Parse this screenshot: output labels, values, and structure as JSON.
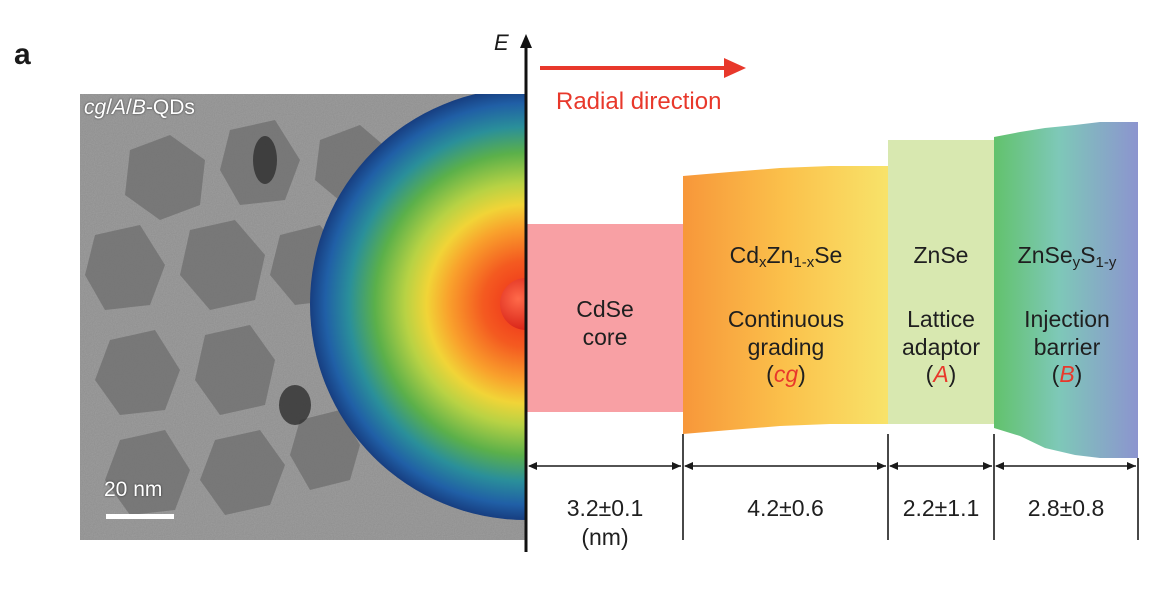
{
  "panel_letter": "a",
  "tem_label": {
    "prefix1": "cg",
    "sep1": "/",
    "prefix2": "A",
    "sep2": "/",
    "prefix3": "B",
    "suffix": "-QDs"
  },
  "scale_bar_label": "20 nm",
  "axis_label": "E",
  "direction_label": "Radial direction",
  "colors": {
    "accent_red": "#e8382b",
    "core": "#f8a0a4",
    "adaptor": "#d8e8b0"
  },
  "layers": [
    {
      "name": "CdSe",
      "name2": "core",
      "dimension": "3.2±0.1",
      "unit": "(nm)"
    },
    {
      "formula": {
        "a": "Cd",
        "sub_a": "x",
        "b": "Zn",
        "sub_b": "1-x",
        "c": "Se"
      },
      "desc1": "Continuous",
      "desc2": "grading",
      "tag": "cg",
      "dimension": "4.2±0.6"
    },
    {
      "formula": "ZnSe",
      "desc1": "Lattice",
      "desc2": "adaptor",
      "tag": "A",
      "dimension": "2.2±1.1"
    },
    {
      "formula": {
        "a": "ZnSe",
        "sub_a": "y",
        "b": "S",
        "sub_b": "1-y"
      },
      "desc1": "Injection",
      "desc2": "barrier",
      "tag": "B",
      "dimension": "2.8±0.8"
    }
  ]
}
